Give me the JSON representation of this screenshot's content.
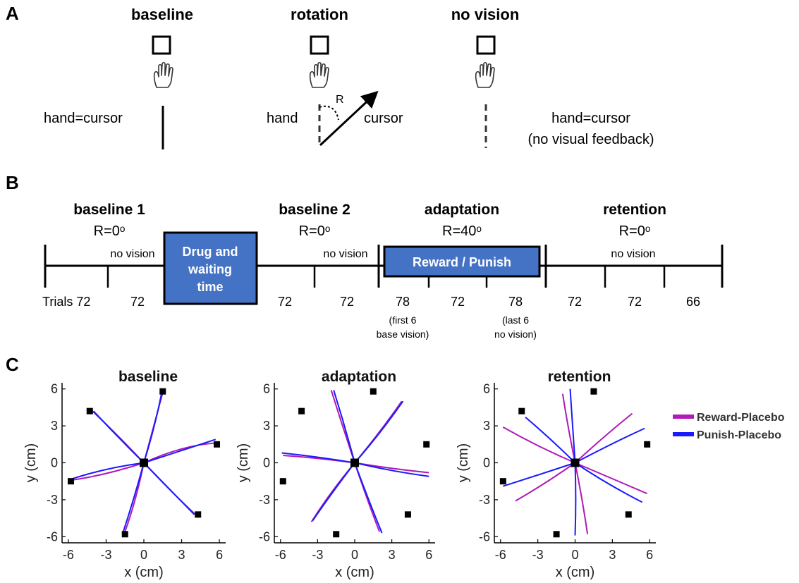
{
  "panel_labels": {
    "a": "A",
    "b": "B",
    "c": "C"
  },
  "panel_a": {
    "conditions": [
      {
        "title": "baseline",
        "hand_label": "hand=cursor"
      },
      {
        "title": "rotation",
        "hand_label": "hand",
        "cursor_label": "cursor",
        "angle_label": "R"
      },
      {
        "title": "no vision",
        "note_line1": "hand=cursor",
        "note_line2": "(no visual feedback)"
      }
    ],
    "icons": [
      "target-square-icon",
      "hand-icon"
    ]
  },
  "panel_b": {
    "phases": [
      {
        "name": "baseline 1",
        "rotation": "R=0ᵒ"
      },
      {
        "name": "baseline 2",
        "rotation": "R=0ᵒ"
      },
      {
        "name": "adaptation",
        "rotation": "R=40ᵒ"
      },
      {
        "name": "retention",
        "rotation": "R=0ᵒ"
      }
    ],
    "no_vision_labels": [
      "no vision",
      "no vision",
      "no vision"
    ],
    "drug_box": {
      "line1": "Drug and",
      "line2": "waiting",
      "line3": "time",
      "color": "#4472C4"
    },
    "reward_box": {
      "label": "Reward / Punish",
      "color": "#4472C4"
    },
    "trials": [
      "Trials 72",
      "72",
      "72",
      "72",
      "78",
      "72",
      "78",
      "72",
      "72",
      "66"
    ],
    "notes": [
      {
        "line1": "(first 6",
        "line2": "base vision)"
      },
      {
        "line1": "(last 6",
        "line2": "no vision)"
      }
    ]
  },
  "panel_c": {
    "legend": [
      {
        "name": "Reward-Placebo",
        "color": "#B01AB8"
      },
      {
        "name": "Punish-Placebo",
        "color": "#1A1AFF"
      }
    ],
    "xlabel": "x (cm)",
    "ylabel": "y (cm)",
    "ticks": [
      "-6",
      "-3",
      "0",
      "3",
      "6"
    ]
  },
  "chart_data": [
    {
      "type": "line",
      "title": "baseline",
      "xlabel": "x (cm)",
      "ylabel": "y (cm)",
      "xlim": [
        -6.5,
        6.5
      ],
      "ylim": [
        -6.5,
        6.5
      ],
      "targets": [
        [
          1.5,
          5.8
        ],
        [
          5.8,
          1.5
        ],
        [
          4.3,
          -4.2
        ],
        [
          -1.5,
          -5.8
        ],
        [
          -5.8,
          -1.5
        ],
        [
          -4.3,
          4.2
        ]
      ],
      "series": [
        {
          "name": "Reward-Placebo",
          "color": "#B01AB8",
          "paths": [
            [
              [
                0,
                0
              ],
              [
                0.8,
                3.0
              ],
              [
                1.5,
                5.7
              ]
            ],
            [
              [
                0,
                0
              ],
              [
                3.0,
                1.4
              ],
              [
                5.6,
                1.6
              ]
            ],
            [
              [
                0,
                0
              ],
              [
                2.2,
                -2.4
              ],
              [
                4.2,
                -4.3
              ]
            ],
            [
              [
                0,
                0
              ],
              [
                -0.6,
                -3.0
              ],
              [
                -1.5,
                -5.6
              ]
            ],
            [
              [
                0,
                0
              ],
              [
                -3.0,
                -1.0
              ],
              [
                -5.7,
                -1.4
              ]
            ],
            [
              [
                0,
                0
              ],
              [
                -2.4,
                2.6
              ],
              [
                -4.2,
                4.3
              ]
            ]
          ]
        },
        {
          "name": "Punish-Placebo",
          "color": "#1A1AFF",
          "paths": [
            [
              [
                0,
                0
              ],
              [
                0.9,
                3.0
              ],
              [
                1.4,
                5.6
              ]
            ],
            [
              [
                0,
                0
              ],
              [
                3.0,
                1.0
              ],
              [
                5.7,
                1.9
              ]
            ],
            [
              [
                0,
                0
              ],
              [
                2.0,
                -2.1
              ],
              [
                4.0,
                -4.2
              ]
            ],
            [
              [
                0,
                0
              ],
              [
                -0.8,
                -3.0
              ],
              [
                -1.7,
                -5.8
              ]
            ],
            [
              [
                0,
                0
              ],
              [
                -3.0,
                -0.4
              ],
              [
                -5.7,
                -1.3
              ]
            ],
            [
              [
                0,
                0
              ],
              [
                -2.0,
                2.0
              ],
              [
                -4.0,
                4.2
              ]
            ]
          ]
        }
      ]
    },
    {
      "type": "line",
      "title": "adaptation",
      "xlabel": "x (cm)",
      "ylabel": "y (cm)",
      "xlim": [
        -6.5,
        6.5
      ],
      "ylim": [
        -6.5,
        6.5
      ],
      "targets": [
        [
          1.5,
          5.8
        ],
        [
          5.8,
          1.5
        ],
        [
          4.3,
          -4.2
        ],
        [
          -1.5,
          -5.8
        ],
        [
          -5.8,
          -1.5
        ],
        [
          -4.3,
          4.2
        ]
      ],
      "series": [
        {
          "name": "Reward-Placebo",
          "color": "#B01AB8",
          "paths": [
            [
              [
                0,
                0
              ],
              [
                -1.0,
                3.0
              ],
              [
                -1.9,
                5.9
              ]
            ],
            [
              [
                0,
                0
              ],
              [
                2.0,
                2.4
              ],
              [
                3.8,
                5.0
              ]
            ],
            [
              [
                0,
                0
              ],
              [
                3.0,
                -0.5
              ],
              [
                6.0,
                -0.8
              ]
            ],
            [
              [
                0,
                0
              ],
              [
                1.0,
                -3.0
              ],
              [
                2.0,
                -5.6
              ]
            ],
            [
              [
                0,
                0
              ],
              [
                -2.0,
                -2.4
              ],
              [
                -3.5,
                -4.8
              ]
            ],
            [
              [
                0,
                0
              ],
              [
                -3.0,
                0.4
              ],
              [
                -5.8,
                0.6
              ]
            ]
          ]
        },
        {
          "name": "Punish-Placebo",
          "color": "#1A1AFF",
          "paths": [
            [
              [
                0,
                0
              ],
              [
                -0.8,
                3.0
              ],
              [
                -1.7,
                5.9
              ]
            ],
            [
              [
                0,
                0
              ],
              [
                2.1,
                2.4
              ],
              [
                3.9,
                5.0
              ]
            ],
            [
              [
                0,
                0
              ],
              [
                3.0,
                -0.7
              ],
              [
                6.0,
                -1.1
              ]
            ],
            [
              [
                0,
                0
              ],
              [
                1.1,
                -3.0
              ],
              [
                2.2,
                -5.7
              ]
            ],
            [
              [
                0,
                0
              ],
              [
                -1.9,
                -2.5
              ],
              [
                -3.4,
                -4.7
              ]
            ],
            [
              [
                0,
                0
              ],
              [
                -3.0,
                0.5
              ],
              [
                -5.9,
                0.8
              ]
            ]
          ]
        }
      ]
    },
    {
      "type": "line",
      "title": "retention",
      "xlabel": "x (cm)",
      "ylabel": "y (cm)",
      "xlim": [
        -6.5,
        6.5
      ],
      "ylim": [
        -6.5,
        6.5
      ],
      "targets": [
        [
          1.5,
          5.8
        ],
        [
          5.8,
          1.5
        ],
        [
          4.3,
          -4.2
        ],
        [
          -1.5,
          -5.8
        ],
        [
          -5.8,
          -1.5
        ],
        [
          -4.3,
          4.2
        ]
      ],
      "series": [
        {
          "name": "Reward-Placebo",
          "color": "#B01AB8",
          "paths": [
            [
              [
                0,
                0
              ],
              [
                -0.6,
                3.0
              ],
              [
                -1.0,
                5.6
              ]
            ],
            [
              [
                0,
                0
              ],
              [
                2.6,
                2.4
              ],
              [
                4.6,
                4.0
              ]
            ],
            [
              [
                0,
                0
              ],
              [
                3.0,
                -1.3
              ],
              [
                5.8,
                -2.5
              ]
            ],
            [
              [
                0,
                0
              ],
              [
                0.6,
                -3.0
              ],
              [
                1.0,
                -5.8
              ]
            ],
            [
              [
                0,
                0
              ],
              [
                -2.4,
                -1.7
              ],
              [
                -4.8,
                -3.1
              ]
            ],
            [
              [
                0,
                0
              ],
              [
                -3.0,
                1.3
              ],
              [
                -5.8,
                2.9
              ]
            ]
          ]
        },
        {
          "name": "Punish-Placebo",
          "color": "#1A1AFF",
          "paths": [
            [
              [
                0,
                0
              ],
              [
                -0.2,
                3.0
              ],
              [
                -0.4,
                6.0
              ]
            ],
            [
              [
                0,
                0
              ],
              [
                3.0,
                1.6
              ],
              [
                5.6,
                2.8
              ]
            ],
            [
              [
                0,
                0
              ],
              [
                2.5,
                -1.7
              ],
              [
                5.4,
                -3.2
              ]
            ],
            [
              [
                0,
                0
              ],
              [
                0.1,
                -3.0
              ],
              [
                0.0,
                -5.9
              ]
            ],
            [
              [
                0,
                0
              ],
              [
                -3.0,
                -1.0
              ],
              [
                -5.8,
                -1.9
              ]
            ],
            [
              [
                0,
                0
              ],
              [
                -2.0,
                2.0
              ],
              [
                -4.0,
                3.7
              ]
            ]
          ]
        }
      ]
    }
  ]
}
